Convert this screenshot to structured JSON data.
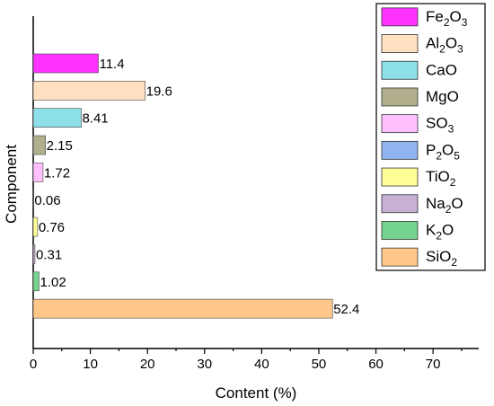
{
  "chart_data": {
    "type": "bar",
    "orientation": "horizontal",
    "title": "",
    "xlabel": "Content (%)",
    "ylabel": "Component",
    "xlim": [
      0,
      78
    ],
    "xticks": [
      0,
      10,
      20,
      30,
      40,
      50,
      60,
      70
    ],
    "grid": false,
    "legend_position": "top-right",
    "bars": [
      {
        "key": "Fe2O3",
        "label": "11.4",
        "value": 11.4,
        "color": "#ff33ff"
      },
      {
        "key": "Al2O3",
        "label": "19.6",
        "value": 19.6,
        "color": "#ffe0c0"
      },
      {
        "key": "CaO",
        "label": "8.41",
        "value": 8.41,
        "color": "#8de0e8"
      },
      {
        "key": "MgO",
        "label": "2.15",
        "value": 2.15,
        "color": "#b0ae8c"
      },
      {
        "key": "SO3",
        "label": "1.72",
        "value": 1.72,
        "color": "#ffc0ff"
      },
      {
        "key": "P2O5",
        "label": "0.06",
        "value": 0.06,
        "color": "#8fb4ee"
      },
      {
        "key": "TiO2",
        "label": "0.76",
        "value": 0.76,
        "color": "#ffff99"
      },
      {
        "key": "Na2O",
        "label": "0.31",
        "value": 0.31,
        "color": "#c8afd4"
      },
      {
        "key": "K2O",
        "label": "1.02",
        "value": 1.02,
        "color": "#74d48e"
      },
      {
        "key": "SiO2",
        "label": "52.4",
        "value": 52.4,
        "color": "#ffc88a"
      }
    ],
    "legend": [
      {
        "key": "Fe2O3",
        "base": "Fe",
        "parts": [
          [
            "2",
            "sub"
          ],
          [
            "O",
            ""
          ],
          [
            "3",
            "sub"
          ]
        ],
        "color": "#ff33ff"
      },
      {
        "key": "Al2O3",
        "base": "Al",
        "parts": [
          [
            "2",
            "sub"
          ],
          [
            "O",
            ""
          ],
          [
            "3",
            "sub"
          ]
        ],
        "color": "#ffe0c0"
      },
      {
        "key": "CaO",
        "base": "CaO",
        "parts": [],
        "color": "#8de0e8"
      },
      {
        "key": "MgO",
        "base": "MgO",
        "parts": [],
        "color": "#b0ae8c"
      },
      {
        "key": "SO3",
        "base": "SO",
        "parts": [
          [
            "3",
            "sub"
          ]
        ],
        "color": "#ffc0ff"
      },
      {
        "key": "P2O5",
        "base": "P",
        "parts": [
          [
            "2",
            "sub"
          ],
          [
            "O",
            ""
          ],
          [
            "5",
            "sub"
          ]
        ],
        "color": "#8fb4ee"
      },
      {
        "key": "TiO2",
        "base": "TiO",
        "parts": [
          [
            "2",
            "sub"
          ]
        ],
        "color": "#ffff99"
      },
      {
        "key": "Na2O",
        "base": "Na",
        "parts": [
          [
            "2",
            "sub"
          ],
          [
            "O",
            ""
          ]
        ],
        "color": "#c8afd4"
      },
      {
        "key": "K2O",
        "base": "K",
        "parts": [
          [
            "2",
            "sub"
          ],
          [
            "O",
            ""
          ]
        ],
        "color": "#74d48e"
      },
      {
        "key": "SiO2",
        "base": "SiO",
        "parts": [
          [
            "2",
            "sub"
          ]
        ],
        "color": "#ffc88a"
      }
    ]
  }
}
